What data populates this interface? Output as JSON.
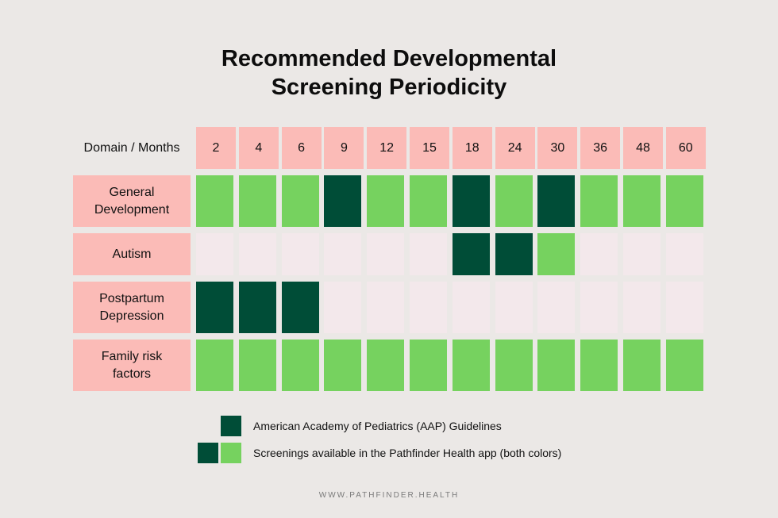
{
  "title_line1": "Recommended Developmental",
  "title_line2": "Screening Periodicity",
  "colors": {
    "background": "#ebe8e6",
    "header_pink": "#fbbbb7",
    "aap_dark_green": "#004d37",
    "app_light_green": "#76d25f",
    "empty_cell": "#f3e8eb"
  },
  "chart_data": {
    "type": "table",
    "corner_label": "Domain / Months",
    "columns": [
      "2",
      "4",
      "6",
      "9",
      "12",
      "15",
      "18",
      "24",
      "30",
      "36",
      "48",
      "60"
    ],
    "rows": [
      {
        "label_lines": [
          "General",
          "Development"
        ],
        "cells": [
          "app",
          "app",
          "app",
          "aap",
          "app",
          "app",
          "aap",
          "app",
          "aap",
          "app",
          "app",
          "app"
        ]
      },
      {
        "label_lines": [
          "Autism"
        ],
        "cells": [
          "none",
          "none",
          "none",
          "none",
          "none",
          "none",
          "aap",
          "aap",
          "app",
          "none",
          "none",
          "none"
        ]
      },
      {
        "label_lines": [
          "Postpartum",
          "Depression"
        ],
        "cells": [
          "aap",
          "aap",
          "aap",
          "none",
          "none",
          "none",
          "none",
          "none",
          "none",
          "none",
          "none",
          "none"
        ]
      },
      {
        "label_lines": [
          "Family risk",
          "factors"
        ],
        "cells": [
          "app",
          "app",
          "app",
          "app",
          "app",
          "app",
          "app",
          "app",
          "app",
          "app",
          "app",
          "app"
        ]
      }
    ],
    "legend": [
      {
        "label": "American Academy of Pediatrics (AAP) Guidelines",
        "swatches": [
          "aap"
        ]
      },
      {
        "label": "Screenings available in the Pathfinder Health app (both colors)",
        "swatches": [
          "aap",
          "app"
        ]
      }
    ]
  },
  "footer": "WWW.PATHFINDER.HEALTH"
}
